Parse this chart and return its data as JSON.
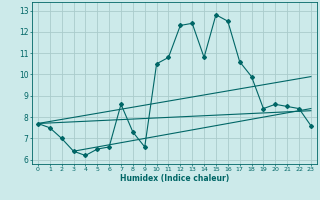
{
  "title": "",
  "xlabel": "Humidex (Indice chaleur)",
  "ylabel": "",
  "bg_color": "#cceaea",
  "grid_color": "#aacccc",
  "line_color": "#006666",
  "xlim": [
    -0.5,
    23.5
  ],
  "ylim": [
    5.8,
    13.4
  ],
  "xticks": [
    0,
    1,
    2,
    3,
    4,
    5,
    6,
    7,
    8,
    9,
    10,
    11,
    12,
    13,
    14,
    15,
    16,
    17,
    18,
    19,
    20,
    21,
    22,
    23
  ],
  "yticks": [
    6,
    7,
    8,
    9,
    10,
    11,
    12,
    13
  ],
  "main_line_x": [
    0,
    1,
    2,
    3,
    4,
    5,
    6,
    7,
    8,
    9,
    10,
    11,
    12,
    13,
    14,
    15,
    16,
    17,
    18,
    19,
    20,
    21,
    22,
    23
  ],
  "main_line_y": [
    7.7,
    7.5,
    7.0,
    6.4,
    6.2,
    6.5,
    6.6,
    8.6,
    7.3,
    6.6,
    10.5,
    10.8,
    12.3,
    12.4,
    10.8,
    12.8,
    12.5,
    10.6,
    9.9,
    8.4,
    8.6,
    8.5,
    8.4,
    7.6
  ],
  "trend1_x": [
    0,
    23
  ],
  "trend1_y": [
    7.7,
    8.3
  ],
  "trend2_x": [
    0,
    23
  ],
  "trend2_y": [
    7.7,
    9.9
  ],
  "trend3_x": [
    3,
    23
  ],
  "trend3_y": [
    6.4,
    8.4
  ]
}
